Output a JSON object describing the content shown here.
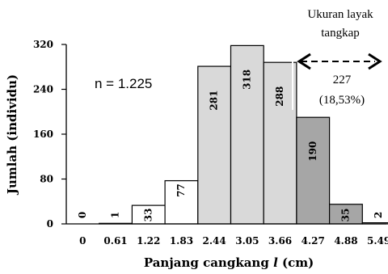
{
  "chart_data": {
    "type": "bar",
    "categories": [
      "0",
      "0.61",
      "1.22",
      "1.83",
      "2.44",
      "3.05",
      "3.66",
      "4.27",
      "4.88",
      "5.49"
    ],
    "values": [
      0,
      1,
      33,
      77,
      281,
      318,
      288,
      190,
      35,
      2
    ],
    "bar_labels": [
      "0",
      "1",
      "33",
      "77",
      "281",
      "318",
      "288",
      "190",
      "35",
      "2"
    ],
    "bar_colors": [
      "#ffffff",
      "#ffffff",
      "#ffffff",
      "#ffffff",
      "#d9d9d9",
      "#d9d9d9",
      "#d9d9d9",
      "#a6a6a6",
      "#a6a6a6",
      "#ffffff"
    ],
    "xlabel": "Panjang cangkang ",
    "xlabel_var": "l",
    "xlabel_unit": " (cm)",
    "ylabel": "Jumlah (individu)",
    "yticks": [
      "0",
      "80",
      "160",
      "240",
      "320"
    ],
    "ylim": [
      0,
      320
    ],
    "grid": false
  },
  "annotations": {
    "n": "n = 1.225",
    "catch_size_line1": "Ukuran layak",
    "catch_size_line2": "tangkap",
    "catch_count": "227",
    "catch_percent": "(18,53%)"
  }
}
